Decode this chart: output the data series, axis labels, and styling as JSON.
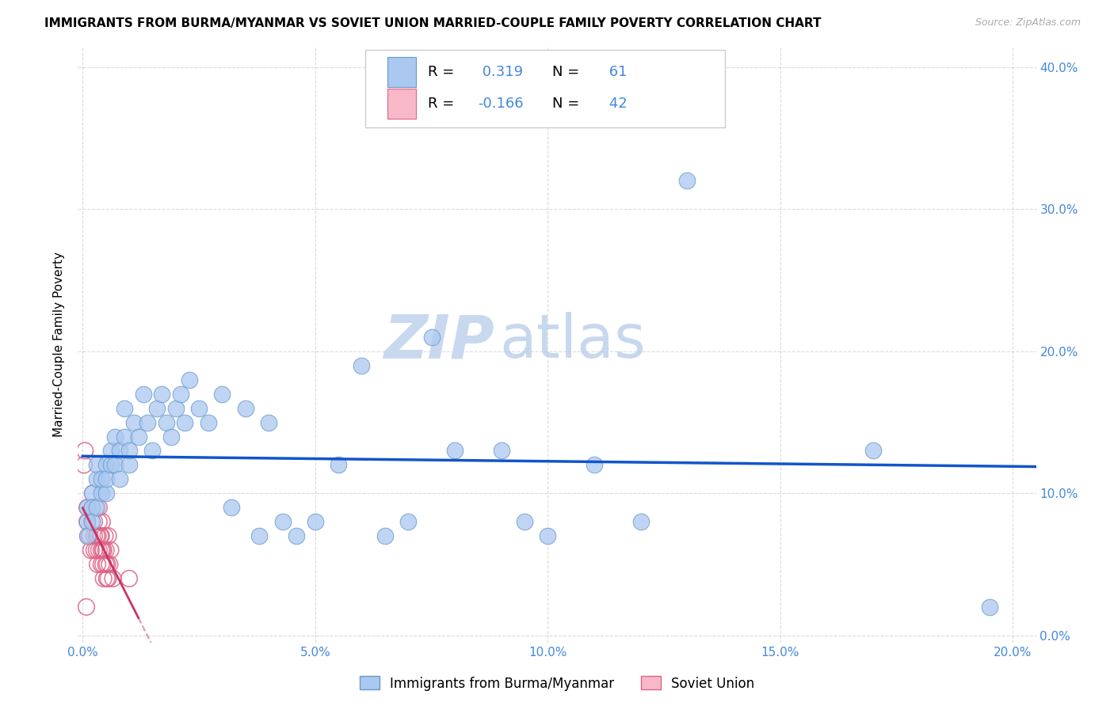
{
  "title": "IMMIGRANTS FROM BURMA/MYANMAR VS SOVIET UNION MARRIED-COUPLE FAMILY POVERTY CORRELATION CHART",
  "source": "Source: ZipAtlas.com",
  "ylabel": "Married-Couple Family Poverty",
  "xlim": [
    -0.001,
    0.205
  ],
  "ylim": [
    -0.005,
    0.415
  ],
  "xticks": [
    0.0,
    0.05,
    0.1,
    0.15,
    0.2
  ],
  "yticks": [
    0.0,
    0.1,
    0.2,
    0.3,
    0.4
  ],
  "xtick_labels": [
    "0.0%",
    "5.0%",
    "10.0%",
    "15.0%",
    "20.0%"
  ],
  "ytick_labels": [
    "0.0%",
    "10.0%",
    "20.0%",
    "30.0%",
    "40.0%"
  ],
  "burma_color": "#aac8f0",
  "soviet_color": "#f8b8c8",
  "burma_edge_color": "#6699cc",
  "soviet_edge_color": "#dd6688",
  "burma_line_color": "#1155cc",
  "soviet_line_color": "#cc3366",
  "burma_R": 0.319,
  "burma_N": 61,
  "soviet_R": -0.166,
  "soviet_N": 42,
  "legend_label_burma": "Immigrants from Burma/Myanmar",
  "legend_label_soviet": "Soviet Union",
  "watermark_zip": "ZIP",
  "watermark_atlas": "atlas",
  "burma_x": [
    0.001,
    0.001,
    0.001,
    0.002,
    0.002,
    0.002,
    0.003,
    0.003,
    0.003,
    0.004,
    0.004,
    0.005,
    0.005,
    0.005,
    0.006,
    0.006,
    0.007,
    0.007,
    0.008,
    0.008,
    0.009,
    0.009,
    0.01,
    0.01,
    0.011,
    0.012,
    0.013,
    0.014,
    0.015,
    0.016,
    0.017,
    0.018,
    0.019,
    0.02,
    0.021,
    0.022,
    0.023,
    0.025,
    0.027,
    0.03,
    0.032,
    0.035,
    0.038,
    0.04,
    0.043,
    0.046,
    0.05,
    0.055,
    0.06,
    0.065,
    0.07,
    0.075,
    0.08,
    0.09,
    0.095,
    0.1,
    0.11,
    0.12,
    0.13,
    0.17,
    0.195
  ],
  "burma_y": [
    0.08,
    0.09,
    0.07,
    0.1,
    0.09,
    0.08,
    0.11,
    0.12,
    0.09,
    0.1,
    0.11,
    0.12,
    0.1,
    0.11,
    0.13,
    0.12,
    0.14,
    0.12,
    0.11,
    0.13,
    0.16,
    0.14,
    0.12,
    0.13,
    0.15,
    0.14,
    0.17,
    0.15,
    0.13,
    0.16,
    0.17,
    0.15,
    0.14,
    0.16,
    0.17,
    0.15,
    0.18,
    0.16,
    0.15,
    0.17,
    0.09,
    0.16,
    0.07,
    0.15,
    0.08,
    0.07,
    0.08,
    0.12,
    0.19,
    0.07,
    0.08,
    0.21,
    0.13,
    0.13,
    0.08,
    0.07,
    0.12,
    0.08,
    0.32,
    0.13,
    0.02
  ],
  "soviet_x": [
    0.0003,
    0.0005,
    0.0008,
    0.001,
    0.001,
    0.0012,
    0.0015,
    0.0018,
    0.002,
    0.002,
    0.0022,
    0.0025,
    0.0025,
    0.0025,
    0.0028,
    0.003,
    0.003,
    0.0032,
    0.0033,
    0.0035,
    0.0035,
    0.0035,
    0.0038,
    0.004,
    0.004,
    0.004,
    0.0042,
    0.0043,
    0.0044,
    0.0045,
    0.0045,
    0.0048,
    0.005,
    0.005,
    0.0052,
    0.0053,
    0.0055,
    0.0055,
    0.0058,
    0.006,
    0.0065,
    0.01
  ],
  "soviet_y": [
    0.12,
    0.13,
    0.02,
    0.08,
    0.09,
    0.07,
    0.07,
    0.06,
    0.08,
    0.09,
    0.1,
    0.07,
    0.08,
    0.06,
    0.09,
    0.07,
    0.06,
    0.05,
    0.07,
    0.08,
    0.09,
    0.06,
    0.07,
    0.05,
    0.06,
    0.07,
    0.08,
    0.06,
    0.05,
    0.04,
    0.06,
    0.07,
    0.05,
    0.06,
    0.04,
    0.05,
    0.07,
    0.04,
    0.05,
    0.06,
    0.04,
    0.04
  ]
}
